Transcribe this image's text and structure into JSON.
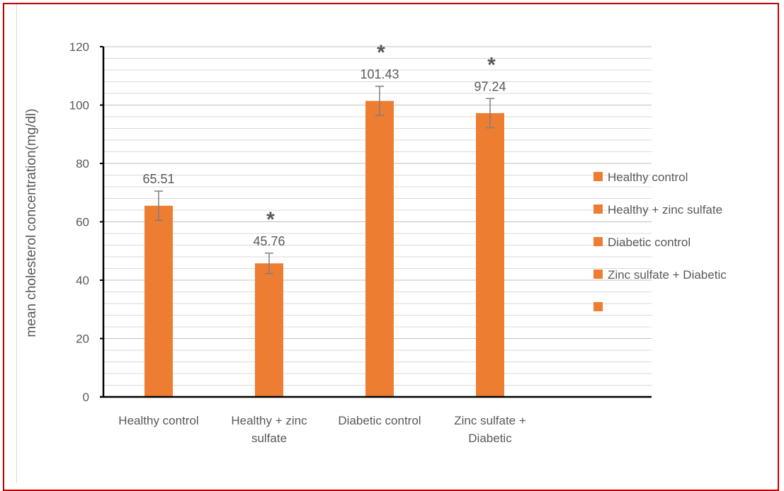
{
  "chart_data": {
    "type": "bar",
    "title": "",
    "ylabel": "mean cholesterol concentration(mg/dl)",
    "xlabel": "",
    "ylim": [
      0,
      120
    ],
    "y_ticks": [
      0,
      20,
      40,
      60,
      80,
      100,
      120
    ],
    "categories": [
      [
        "Healthy control"
      ],
      [
        "Healthy + zinc",
        "sulfate"
      ],
      [
        "Diabetic control"
      ],
      [
        "Zinc sulfate +",
        "Diabetic"
      ]
    ],
    "values": [
      65.51,
      45.76,
      101.43,
      97.24
    ],
    "data_labels": [
      "65.51",
      "45.76",
      "101.43",
      "97.24"
    ],
    "error_bars": [
      5,
      3.5,
      5,
      5
    ],
    "significance_marks": [
      "",
      "*",
      "*",
      "*"
    ],
    "bar_color": "#ed7d31",
    "grid": true,
    "legend_position": "right",
    "legend": [
      "Healthy control",
      "Healthy + zinc sulfate",
      "Diabetic control",
      "Zinc sulfate +  Diabetic",
      ""
    ]
  }
}
